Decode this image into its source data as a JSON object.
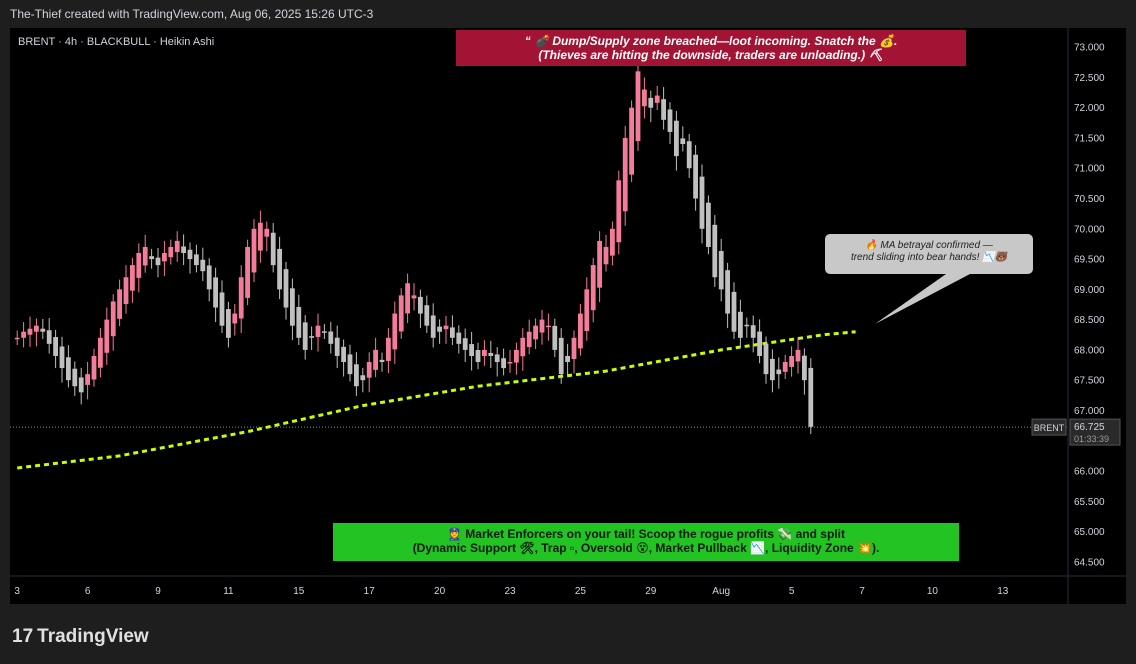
{
  "header": {
    "attribution": "The-Thief created with TradingView.com, Aug 06, 2025 15:26 UTC-3"
  },
  "symbol_info": "BRENT · 4h · BLACKBULL · Heikin Ashi",
  "annotations": {
    "top_banner": [
      "“ 💣 Dump/Supply zone breached—loot incoming. Snatch the 💰.",
      "(Thieves are hitting the downside, traders are unloading.) ⛏"
    ],
    "callout": [
      "🔥 MA betrayal confirmed —",
      "trend sliding into bear hands! 📉🐻"
    ],
    "bottom_banner": [
      "👮 Market Enforcers on your tail! Scoop the rogue profits 💸 and split",
      "(Dynamic Support 🛠, Trap ▫, Oversold 😵, Market Pullback 📉, Liquidity Zone 💥)."
    ]
  },
  "price_tag": {
    "symbol": "BRENT",
    "price": "66.725",
    "countdown": "01:33:39"
  },
  "footer": {
    "logo": "TradingView"
  },
  "colors": {
    "bull": "#f47c9a",
    "bear": "#c0c0c0",
    "ma": "#c6ff00",
    "background": "#000000"
  },
  "chart_data": {
    "type": "candlestick",
    "style": "Heikin Ashi",
    "symbol": "BRENT",
    "timeframe": "4h",
    "y_ticks": [
      "64.500",
      "65.000",
      "65.500",
      "66.000",
      "66.500",
      "67.000",
      "67.500",
      "68.000",
      "68.500",
      "69.000",
      "69.500",
      "70.000",
      "70.500",
      "71.000",
      "71.500",
      "72.000",
      "72.500",
      "73.000"
    ],
    "x_ticks": [
      {
        "label": "3",
        "bar": 0
      },
      {
        "label": "6",
        "bar": 11
      },
      {
        "label": "9",
        "bar": 22
      },
      {
        "label": "11",
        "bar": 33
      },
      {
        "label": "15",
        "bar": 44
      },
      {
        "label": "17",
        "bar": 55
      },
      {
        "label": "20",
        "bar": 66
      },
      {
        "label": "23",
        "bar": 77
      },
      {
        "label": "25",
        "bar": 88
      },
      {
        "label": "29",
        "bar": 99
      },
      {
        "label": "Aug",
        "bar": 110
      },
      {
        "label": "5",
        "bar": 121
      },
      {
        "label": "7",
        "bar": 132
      },
      {
        "label": "10",
        "bar": 143
      },
      {
        "label": "13",
        "bar": 154
      }
    ],
    "ylim": [
      64.2,
      73.25
    ],
    "last_price": 66.725,
    "close_series": [
      68.2,
      68.3,
      68.35,
      68.4,
      68.3,
      68.1,
      67.9,
      67.7,
      67.5,
      67.4,
      67.3,
      67.6,
      67.9,
      68.2,
      68.5,
      68.8,
      69.0,
      69.2,
      69.4,
      69.6,
      69.7,
      69.5,
      69.4,
      69.6,
      69.7,
      69.8,
      69.6,
      69.5,
      69.4,
      69.3,
      69.0,
      68.7,
      68.4,
      68.2,
      68.6,
      69.2,
      69.7,
      70.0,
      70.1,
      70.0,
      69.4,
      69.0,
      68.7,
      68.4,
      68.2,
      68.0,
      68.2,
      68.4,
      68.3,
      68.1,
      67.9,
      67.8,
      67.6,
      67.4,
      67.5,
      67.8,
      68.0,
      67.8,
      68.2,
      68.6,
      68.9,
      69.1,
      68.9,
      68.6,
      68.4,
      68.2,
      68.3,
      68.4,
      68.2,
      68.1,
      68.0,
      67.9,
      67.8,
      68.0,
      67.9,
      67.8,
      67.7,
      67.8,
      68.0,
      68.2,
      68.3,
      68.4,
      68.5,
      68.4,
      68.0,
      67.6,
      67.8,
      68.2,
      68.6,
      69.0,
      69.4,
      69.8,
      69.7,
      70.0,
      70.8,
      71.5,
      72.0,
      72.6,
      72.3,
      72.0,
      72.2,
      71.8,
      71.6,
      71.2,
      71.4,
      71.0,
      70.5,
      70.0,
      69.7,
      69.2,
      69.0,
      68.6,
      68.3,
      68.2,
      68.4,
      68.2,
      67.9,
      67.6,
      67.5,
      67.6,
      67.8,
      67.9,
      68.0,
      67.5,
      66.73
    ],
    "moving_average": {
      "style": "dashed",
      "points": [
        {
          "bar": 0,
          "value": 66.05
        },
        {
          "bar": 16,
          "value": 66.25
        },
        {
          "bar": 36,
          "value": 66.65
        },
        {
          "bar": 54,
          "value": 67.08
        },
        {
          "bar": 72,
          "value": 67.4
        },
        {
          "bar": 92,
          "value": 67.65
        },
        {
          "bar": 110,
          "value": 68.0
        },
        {
          "bar": 126,
          "value": 68.25
        },
        {
          "bar": 131,
          "value": 68.3
        }
      ]
    }
  }
}
